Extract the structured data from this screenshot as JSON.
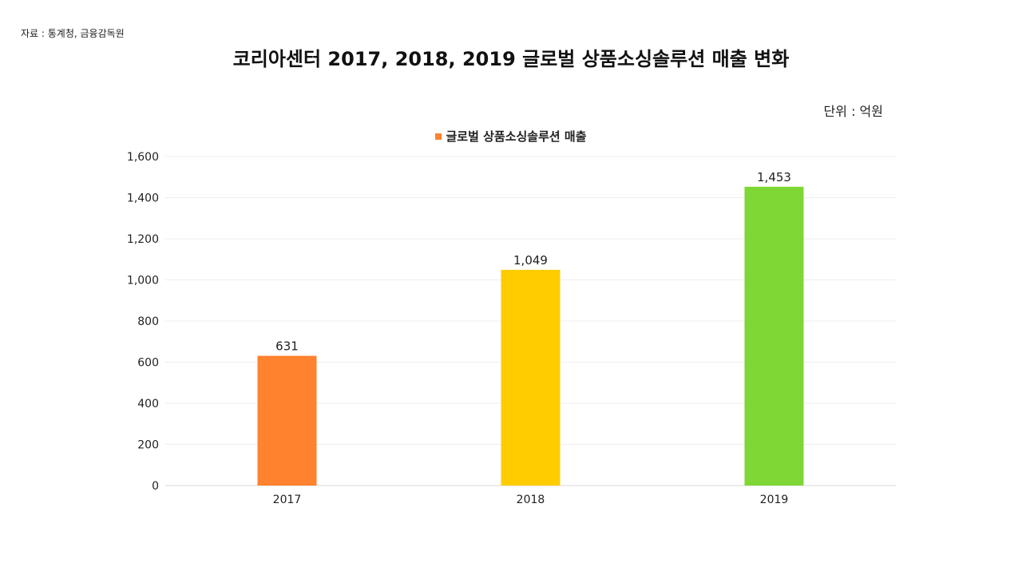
{
  "source": "자료 : 통계청, 금융감독원",
  "unit": "단위 : 억원",
  "chart_data": {
    "type": "bar",
    "title": "코리아센터 2017, 2018, 2019 글로벌 상품소싱솔루션 매출 변화",
    "xlabel": "",
    "ylabel": "",
    "legend_position": "top-center",
    "grid": true,
    "categories": [
      "2017",
      "2018",
      "2019"
    ],
    "series": [
      {
        "name": "글로벌 상품소싱솔루션 매출",
        "values": [
          631,
          1049,
          1453
        ],
        "value_labels": [
          "631",
          "1,049",
          "1,453"
        ],
        "colors": [
          "#FF822E",
          "#FFCC00",
          "#7ED734"
        ]
      }
    ],
    "legend_color": "#FF822E",
    "ylim": [
      0,
      1600
    ],
    "yticks": [
      0,
      200,
      400,
      600,
      800,
      1000,
      1200,
      1400,
      1600
    ],
    "ytick_labels": [
      "0",
      "200",
      "400",
      "600",
      "800",
      "1,000",
      "1,200",
      "1,400",
      "1,600"
    ]
  }
}
